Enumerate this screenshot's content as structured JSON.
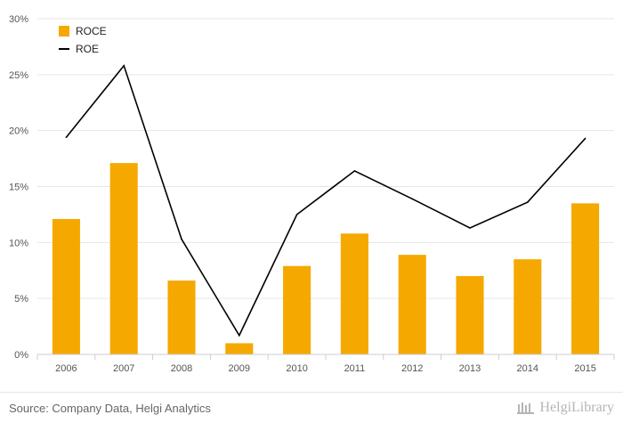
{
  "chart_data": {
    "type": "bar",
    "categories": [
      "2006",
      "2007",
      "2008",
      "2009",
      "2010",
      "2011",
      "2012",
      "2013",
      "2014",
      "2015"
    ],
    "series": [
      {
        "name": "ROCE",
        "type": "bar",
        "color": "#f5a800",
        "values": [
          12.1,
          17.1,
          6.6,
          1.0,
          7.9,
          10.8,
          8.9,
          7.0,
          8.5,
          13.5
        ]
      },
      {
        "name": "ROE",
        "type": "line",
        "color": "#000000",
        "values": [
          19.4,
          25.8,
          10.3,
          1.7,
          12.5,
          16.4,
          13.9,
          11.3,
          13.6,
          19.3
        ]
      }
    ],
    "ylim": [
      0,
      30
    ],
    "yticks": [
      "0%",
      "5%",
      "10%",
      "15%",
      "20%",
      "25%",
      "30%"
    ],
    "ytick_values": [
      0,
      5,
      10,
      15,
      20,
      25,
      30
    ],
    "grid": true,
    "legend_position": "top-left"
  },
  "footer": {
    "source": "Source: Company Data, Helgi Analytics",
    "brand": "HelgiLibrary"
  },
  "colors": {
    "grid": "#e6e6e6",
    "axis": "#cccccc",
    "tick_text": "#555555"
  }
}
